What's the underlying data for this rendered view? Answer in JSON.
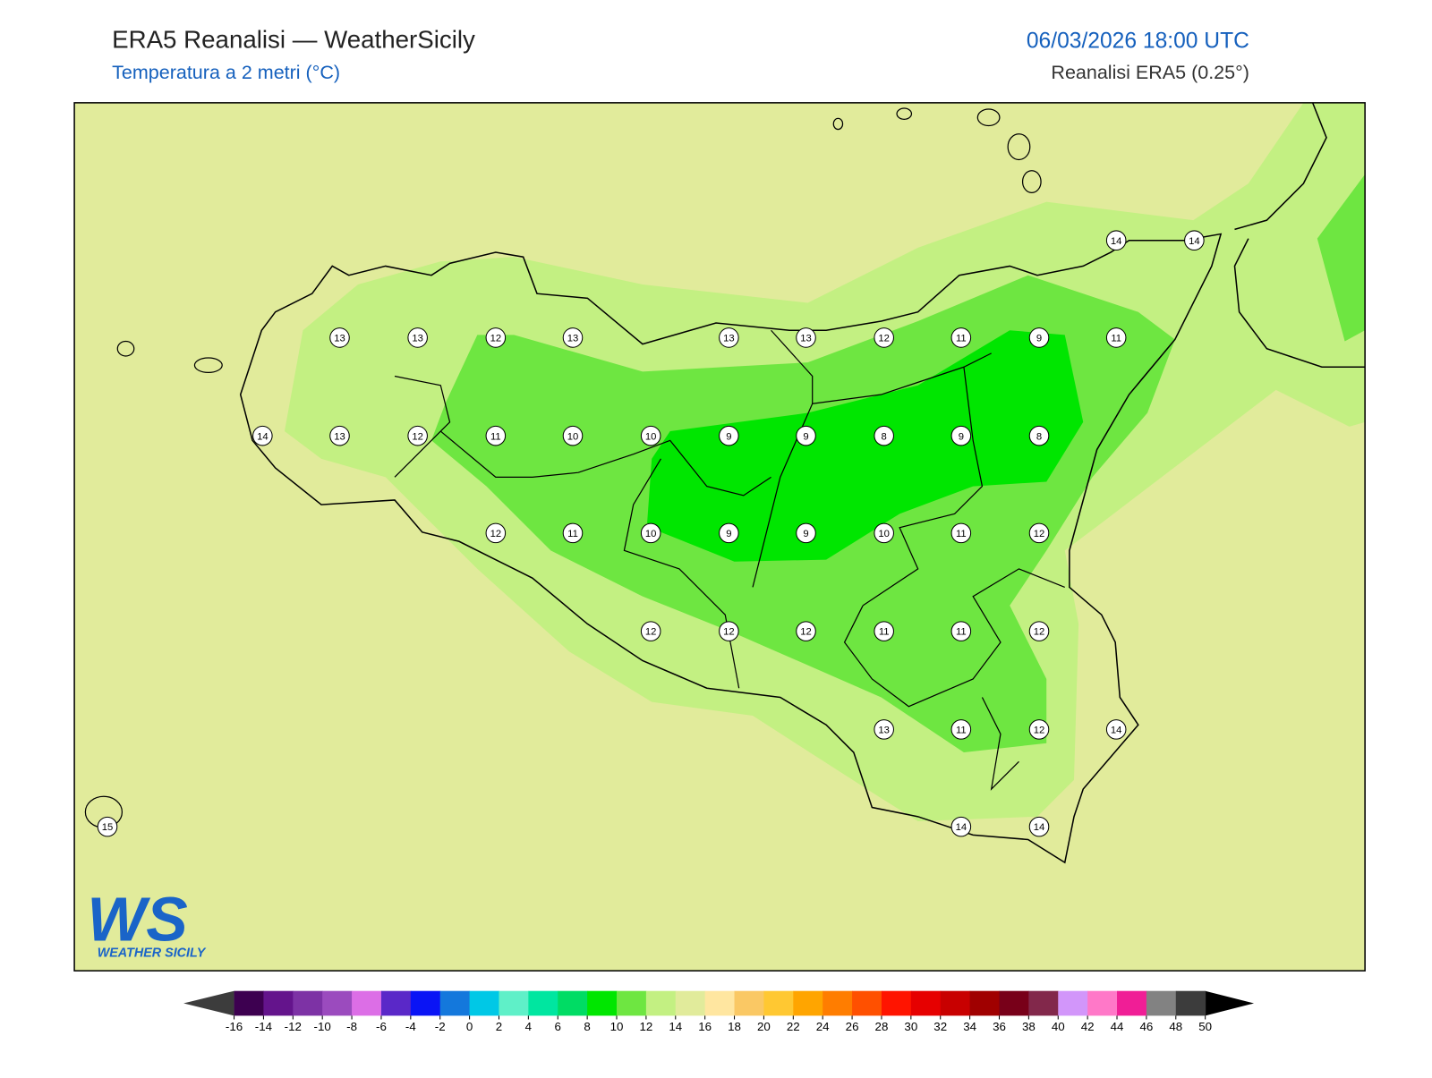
{
  "header": {
    "title": "ERA5 Reanalisi — WeatherSicily",
    "subtitle": "Temperatura a 2 metri (°C)",
    "datetime": "06/03/2026 18:00 UTC",
    "source": "Reanalisi ERA5 (0.25°)"
  },
  "station_values": [
    14,
    14,
    13,
    13,
    12,
    13,
    13,
    13,
    12,
    11,
    9,
    11,
    14,
    13,
    12,
    11,
    10,
    10,
    9,
    9,
    8,
    9,
    8,
    12,
    11,
    10,
    9,
    9,
    10,
    11,
    12,
    12,
    12,
    12,
    11,
    11,
    12,
    13,
    11,
    12,
    14,
    15,
    14,
    14
  ],
  "colorbar": {
    "ticks": [
      -16,
      -14,
      -12,
      -10,
      -8,
      -6,
      -4,
      -2,
      0,
      2,
      4,
      6,
      8,
      10,
      12,
      14,
      16,
      18,
      20,
      22,
      24,
      26,
      28,
      30,
      32,
      34,
      36,
      38,
      40,
      42,
      44,
      46,
      48,
      50
    ],
    "colors": [
      "#3d0050",
      "#64148c",
      "#7d32a5",
      "#9b4bbe",
      "#dc6ee6",
      "#5a28c8",
      "#0a14f5",
      "#1478dc",
      "#00c8e6",
      "#5ff0c8",
      "#00e6a0",
      "#00dc64",
      "#00e600",
      "#6ee641",
      "#c3f082",
      "#e1eb9b",
      "#ffe6a0",
      "#fac864",
      "#ffc832",
      "#ffa500",
      "#ff7d00",
      "#ff5000",
      "#ff1400",
      "#e60000",
      "#c80000",
      "#a00000",
      "#780019",
      "#82284b",
      "#d296fa",
      "#ff78c8",
      "#f01e96",
      "#828282",
      "#3c3c3c"
    ],
    "under_color": "#3c3c3c",
    "over_color": "#000000"
  },
  "logo": {
    "mark": "WS",
    "name": "WEATHER SICILY"
  }
}
